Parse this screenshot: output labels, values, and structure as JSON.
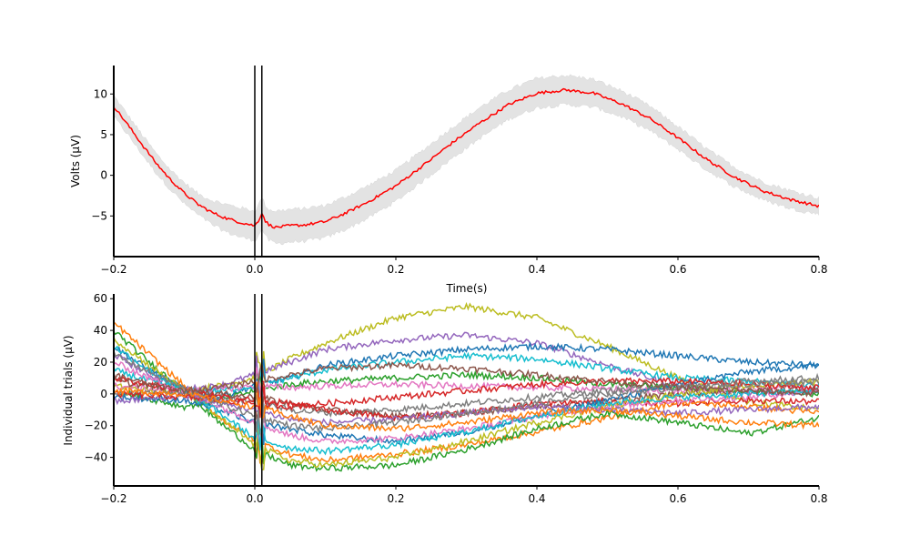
{
  "chart_data": [
    {
      "type": "line",
      "title": "",
      "xlabel": "Time(s)",
      "ylabel": "Volts (μV)",
      "xlim": [
        -0.2,
        0.8
      ],
      "ylim": [
        -10,
        13.5
      ],
      "xticks": [
        -0.2,
        0.0,
        0.2,
        0.4,
        0.6,
        0.8
      ],
      "xtick_labels": [
        "−0.2",
        "0.0",
        "0.2",
        "0.4",
        "0.6",
        "0.8"
      ],
      "yticks": [
        -5,
        0,
        5,
        10
      ],
      "ytick_labels": [
        "−5",
        "0",
        "5",
        "10"
      ],
      "vlines": [
        0.0,
        0.01
      ],
      "grid": false,
      "legend": "none",
      "series": [
        {
          "color": "#ff0000",
          "band_color": "#e3e3e3",
          "x": [
            -0.2,
            -0.18,
            -0.16,
            -0.14,
            -0.12,
            -0.1,
            -0.08,
            -0.06,
            -0.04,
            -0.02,
            0.0,
            0.005,
            0.01,
            0.015,
            0.02,
            0.03,
            0.05,
            0.07,
            0.1,
            0.13,
            0.16,
            0.2,
            0.24,
            0.28,
            0.32,
            0.36,
            0.4,
            0.44,
            0.48,
            0.52,
            0.56,
            0.6,
            0.64,
            0.68,
            0.72,
            0.76,
            0.8
          ],
          "y": [
            8.5,
            6.2,
            3.8,
            1.5,
            -0.5,
            -2.2,
            -3.6,
            -4.6,
            -5.3,
            -5.8,
            -6.2,
            -5.6,
            -4.6,
            -5.6,
            -6.1,
            -6.4,
            -6.2,
            -6.1,
            -5.7,
            -4.6,
            -3.3,
            -1.3,
            1.3,
            4.0,
            6.5,
            8.7,
            10.1,
            10.5,
            10.1,
            8.8,
            7.0,
            4.6,
            2.0,
            -0.2,
            -1.9,
            -3.0,
            -3.8
          ],
          "band_half_width": [
            1.3,
            1.2,
            1.2,
            1.2,
            1.2,
            1.3,
            1.3,
            1.5,
            1.7,
            1.8,
            1.8,
            1.9,
            1.9,
            1.9,
            1.9,
            2.0,
            2.0,
            2.0,
            2.0,
            2.0,
            2.0,
            1.9,
            1.9,
            1.9,
            1.9,
            1.8,
            1.8,
            1.8,
            1.7,
            1.6,
            1.5,
            1.4,
            1.3,
            1.2,
            1.1,
            1.1,
            1.0
          ]
        }
      ]
    },
    {
      "type": "line",
      "title": "",
      "xlabel": "",
      "ylabel": "Individual trials (μV)",
      "xlim": [
        -0.2,
        0.8
      ],
      "ylim": [
        -58,
        63
      ],
      "xticks": [
        -0.2,
        0.0,
        0.2,
        0.4,
        0.6,
        0.8
      ],
      "xtick_labels": [
        "−0.2",
        "0.0",
        "0.2",
        "0.4",
        "0.6",
        "0.8"
      ],
      "yticks": [
        -40,
        -20,
        0,
        20,
        40,
        60
      ],
      "ytick_labels": [
        "−40",
        "−20",
        "0",
        "20",
        "40",
        "60"
      ],
      "vlines": [
        0.0,
        0.01
      ],
      "grid": false,
      "legend": "none",
      "colors": [
        "#1f77b4",
        "#ff7f0e",
        "#2ca02c",
        "#d62728",
        "#9467bd",
        "#8c564b",
        "#e377c2",
        "#7f7f7f",
        "#bcbd22",
        "#17becf"
      ],
      "x": [
        -0.2,
        -0.15,
        -0.1,
        -0.05,
        0.0,
        0.05,
        0.1,
        0.2,
        0.3,
        0.4,
        0.5,
        0.6,
        0.7,
        0.8
      ],
      "series": [
        {
          "color": "#bcbd22",
          "y": [
            5,
            2,
            2,
            5,
            10,
            22,
            32,
            48,
            55,
            48,
            30,
            10,
            -5,
            -10
          ]
        },
        {
          "color": "#9467bd",
          "y": [
            25,
            12,
            3,
            5,
            12,
            20,
            28,
            34,
            37,
            32,
            18,
            5,
            0,
            2
          ]
        },
        {
          "color": "#1f77b4",
          "y": [
            30,
            15,
            3,
            -2,
            5,
            10,
            18,
            24,
            28,
            30,
            28,
            24,
            20,
            18
          ]
        },
        {
          "color": "#17becf",
          "y": [
            15,
            8,
            2,
            2,
            5,
            10,
            15,
            20,
            24,
            22,
            16,
            10,
            8,
            5
          ]
        },
        {
          "color": "#2ca02c",
          "y": [
            2,
            -3,
            -8,
            -4,
            2,
            6,
            8,
            10,
            12,
            10,
            6,
            4,
            2,
            0
          ]
        },
        {
          "color": "#e377c2",
          "y": [
            5,
            3,
            2,
            3,
            5,
            4,
            5,
            6,
            5,
            4,
            3,
            2,
            3,
            4
          ]
        },
        {
          "color": "#7f7f7f",
          "y": [
            0,
            0,
            1,
            -2,
            -5,
            -10,
            -12,
            -10,
            -6,
            -2,
            2,
            5,
            8,
            10
          ]
        },
        {
          "color": "#8c564b",
          "y": [
            8,
            5,
            3,
            0,
            -2,
            -6,
            -10,
            -14,
            -12,
            -8,
            -4,
            0,
            2,
            3
          ]
        },
        {
          "color": "#d62728",
          "y": [
            10,
            6,
            2,
            -2,
            -4,
            -6,
            -10,
            -15,
            -12,
            -6,
            -5,
            -6,
            -4,
            -5
          ]
        },
        {
          "color": "#ff7f0e",
          "y": [
            45,
            25,
            5,
            -15,
            -30,
            -38,
            -42,
            -38,
            -32,
            -24,
            -15,
            -5,
            -8,
            -12
          ]
        },
        {
          "color": "#2ca02c",
          "y": [
            40,
            20,
            2,
            -18,
            -35,
            -45,
            -47,
            -45,
            -35,
            -22,
            -12,
            -18,
            -25,
            -15
          ]
        },
        {
          "color": "#bcbd22",
          "y": [
            35,
            18,
            2,
            -15,
            -32,
            -42,
            -45,
            -40,
            -30,
            -18,
            -8,
            0,
            5,
            8
          ]
        },
        {
          "color": "#1f77b4",
          "y": [
            -2,
            -3,
            -4,
            -10,
            -18,
            -22,
            -26,
            -30,
            -24,
            -14,
            -4,
            6,
            14,
            18
          ]
        },
        {
          "color": "#e377c2",
          "y": [
            20,
            10,
            2,
            -8,
            -18,
            -26,
            -30,
            -28,
            -22,
            -14,
            -8,
            -4,
            -2,
            2
          ]
        },
        {
          "color": "#17becf",
          "y": [
            30,
            15,
            1,
            -12,
            -28,
            -34,
            -36,
            -32,
            -24,
            -14,
            -6,
            -2,
            0,
            2
          ]
        },
        {
          "color": "#9467bd",
          "y": [
            -5,
            -3,
            -1,
            -6,
            -10,
            -16,
            -18,
            -16,
            -12,
            -8,
            -10,
            -12,
            -10,
            -8
          ]
        },
        {
          "color": "#d62728",
          "y": [
            0,
            -1,
            -2,
            -4,
            -6,
            -8,
            -6,
            -2,
            2,
            6,
            8,
            8,
            6,
            4
          ]
        },
        {
          "color": "#7f7f7f",
          "y": [
            25,
            14,
            3,
            -6,
            -14,
            -20,
            -22,
            -18,
            -12,
            -6,
            0,
            4,
            6,
            8
          ]
        },
        {
          "color": "#ff7f0e",
          "y": [
            2,
            1,
            0,
            -4,
            -8,
            -14,
            -20,
            -22,
            -18,
            -12,
            -10,
            -14,
            -18,
            -20
          ]
        },
        {
          "color": "#8c564b",
          "y": [
            12,
            6,
            2,
            4,
            8,
            12,
            16,
            18,
            16,
            12,
            8,
            4,
            2,
            0
          ]
        }
      ]
    }
  ]
}
